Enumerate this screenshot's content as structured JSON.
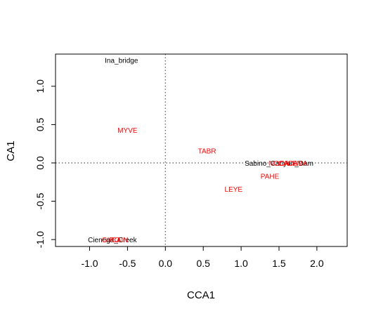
{
  "chart_data": {
    "type": "scatter",
    "title": "",
    "xlabel": "CCA1",
    "ylabel": "CA1",
    "xlim": [
      -1.45,
      2.4
    ],
    "ylim": [
      -1.09,
      1.42
    ],
    "xticks": [
      -1.0,
      -0.5,
      0.0,
      0.5,
      1.0,
      1.5,
      2.0
    ],
    "xtick_labels": [
      "-1.0",
      "-0.5",
      "0.0",
      "0.5",
      "1.0",
      "1.5",
      "2.0"
    ],
    "yticks": [
      -1.0,
      -0.5,
      0.0,
      0.5,
      1.0
    ],
    "ytick_labels": [
      "-1.0",
      "-0.5",
      "0.0",
      "0.5",
      "1.0"
    ],
    "reference_lines": {
      "x": 0,
      "y": 0,
      "style": "dotted"
    },
    "grid": false,
    "legend": "none",
    "colors": {
      "sites": "#000000",
      "species": "#ff0000",
      "axes": "#000000",
      "reference": "#555555"
    },
    "series": [
      {
        "role": "sites",
        "points": [
          {
            "label": "Ina_bridge",
            "x": -0.58,
            "y": 1.34
          },
          {
            "label": "Cienega_Creek",
            "x": -0.7,
            "y": -1.0
          },
          {
            "label": "Sabino_Canyon_Dam",
            "x": 1.5,
            "y": 0.0
          }
        ]
      },
      {
        "role": "species",
        "points": [
          {
            "label": "MYVE",
            "x": -0.5,
            "y": 0.43
          },
          {
            "label": "TABR",
            "x": 0.55,
            "y": 0.16
          },
          {
            "label": "PAHE",
            "x": 1.38,
            "y": -0.17
          },
          {
            "label": "LEYE",
            "x": 0.9,
            "y": -0.34
          },
          {
            "label": "GIRO",
            "x": -0.72,
            "y": -1.0
          },
          {
            "label": "CAIN",
            "x": -0.6,
            "y": -1.0
          },
          {
            "label": "NOCA",
            "x": 1.5,
            "y": 0.0
          },
          {
            "label": "CACA",
            "x": 1.62,
            "y": 0.0
          },
          {
            "label": "LEMA",
            "x": 1.75,
            "y": 0.0
          }
        ]
      }
    ]
  }
}
